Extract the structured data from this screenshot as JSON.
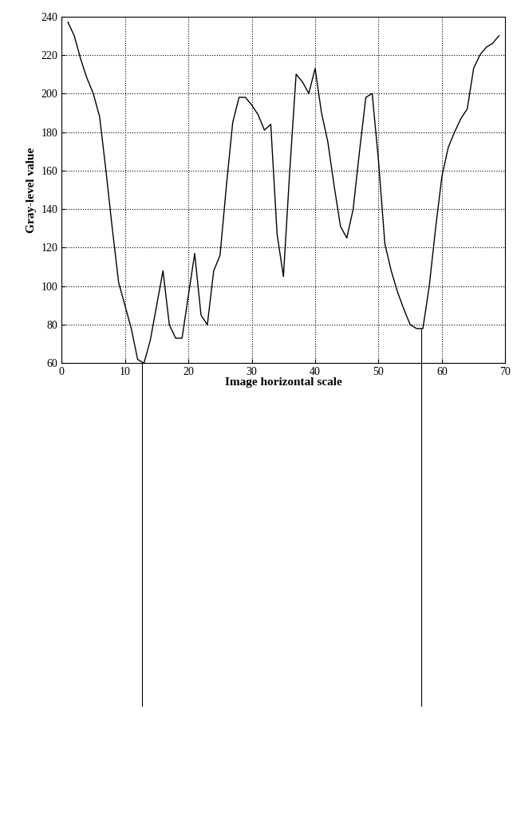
{
  "chart_data": {
    "type": "line",
    "title": null,
    "x_label": "Image horizontal scale",
    "y_label": "Gray-level value",
    "x": [
      1,
      2,
      3,
      4,
      5,
      6,
      7,
      8,
      9,
      10,
      11,
      12,
      13,
      14,
      15,
      16,
      17,
      18,
      19,
      20,
      21,
      22,
      23,
      24,
      25,
      26,
      27,
      28,
      29,
      30,
      31,
      32,
      33,
      34,
      35,
      36,
      37,
      38,
      39,
      40,
      41,
      42,
      43,
      44,
      45,
      46,
      47,
      48,
      49,
      50,
      51,
      52,
      53,
      54,
      55,
      56,
      57,
      58,
      59,
      60,
      61,
      62,
      63,
      64,
      65,
      66,
      67,
      68,
      69
    ],
    "values": [
      237,
      230,
      218,
      208,
      200,
      188,
      160,
      130,
      102,
      90,
      78,
      62,
      60,
      72,
      90,
      108,
      80,
      73,
      73,
      95,
      117,
      85,
      80,
      108,
      116,
      152,
      185,
      198,
      198,
      194,
      189,
      181,
      184,
      127,
      105,
      160,
      210,
      206,
      200,
      213,
      190,
      175,
      152,
      131,
      125,
      140,
      170,
      198,
      200,
      165,
      122,
      108,
      97,
      88,
      80,
      78,
      78,
      100,
      130,
      157,
      172,
      180,
      187,
      192,
      213,
      220,
      224,
      226,
      230
    ],
    "color": "#000000",
    "xlim": [
      0,
      70
    ],
    "xticks": [
      0,
      10,
      20,
      30,
      40,
      50,
      60,
      70
    ],
    "ylim": [
      60,
      240
    ],
    "yticks": [
      60,
      80,
      100,
      120,
      140,
      160,
      180,
      200,
      220,
      240
    ],
    "grid": true,
    "mouth_corners": [
      12.7,
      56.8
    ]
  }
}
